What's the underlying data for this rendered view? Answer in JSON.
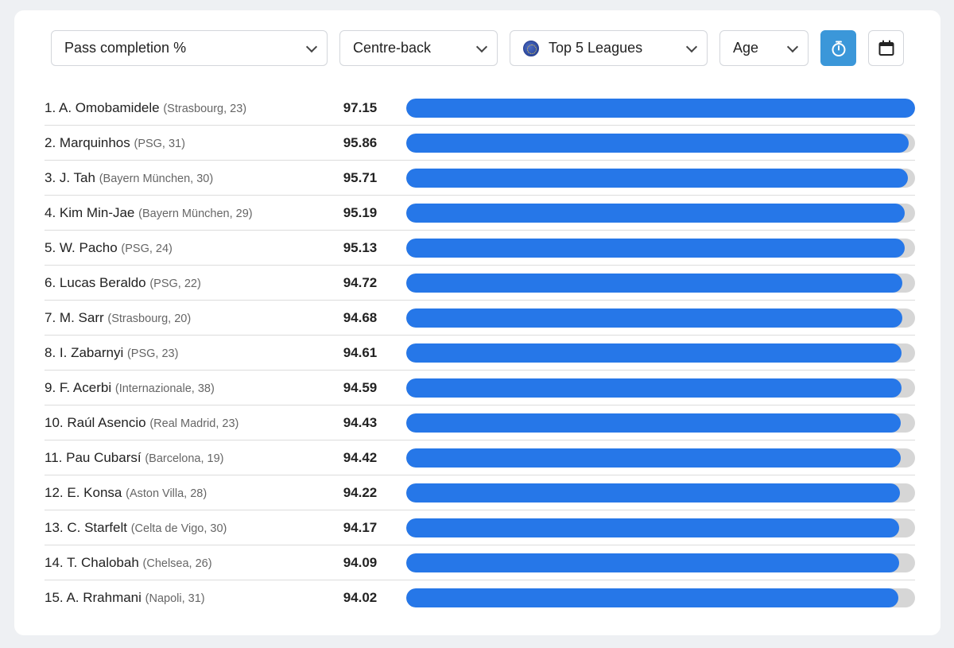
{
  "filters": {
    "metric": "Pass completion %",
    "position": "Centre-back",
    "league": "Top 5 Leagues",
    "age": "Age"
  },
  "colors": {
    "bar": "#2677e8",
    "track": "#d6d6d6",
    "timer_button": "#3b97d9"
  },
  "icons": {
    "metric_chevron": "chevron-down-icon",
    "league_flag": "globe-icon",
    "timer": "stopwatch-icon",
    "calendar": "calendar-icon"
  },
  "scale_max": 97.15,
  "players": [
    {
      "rank": "1.",
      "name": "A. Omobamidele",
      "club": "(Strasbourg, 23)",
      "value": "97.15"
    },
    {
      "rank": "2.",
      "name": "Marquinhos",
      "club": "(PSG, 31)",
      "value": "95.86"
    },
    {
      "rank": "3.",
      "name": "J. Tah",
      "club": "(Bayern München, 30)",
      "value": "95.71"
    },
    {
      "rank": "4.",
      "name": "Kim Min-Jae",
      "club": "(Bayern München, 29)",
      "value": "95.19"
    },
    {
      "rank": "5.",
      "name": "W. Pacho",
      "club": "(PSG, 24)",
      "value": "95.13"
    },
    {
      "rank": "6.",
      "name": "Lucas Beraldo",
      "club": "(PSG, 22)",
      "value": "94.72"
    },
    {
      "rank": "7.",
      "name": "M. Sarr",
      "club": "(Strasbourg, 20)",
      "value": "94.68"
    },
    {
      "rank": "8.",
      "name": "I. Zabarnyi",
      "club": "(PSG, 23)",
      "value": "94.61"
    },
    {
      "rank": "9.",
      "name": "F. Acerbi",
      "club": "(Internazionale, 38)",
      "value": "94.59"
    },
    {
      "rank": "10.",
      "name": "Raúl Asencio",
      "club": "(Real Madrid, 23)",
      "value": "94.43"
    },
    {
      "rank": "11.",
      "name": "Pau Cubarsí",
      "club": "(Barcelona, 19)",
      "value": "94.42"
    },
    {
      "rank": "12.",
      "name": "E. Konsa",
      "club": "(Aston Villa, 28)",
      "value": "94.22"
    },
    {
      "rank": "13.",
      "name": "C. Starfelt",
      "club": "(Celta de Vigo, 30)",
      "value": "94.17"
    },
    {
      "rank": "14.",
      "name": "T. Chalobah",
      "club": "(Chelsea, 26)",
      "value": "94.09"
    },
    {
      "rank": "15.",
      "name": "A. Rrahmani",
      "club": "(Napoli, 31)",
      "value": "94.02"
    }
  ]
}
